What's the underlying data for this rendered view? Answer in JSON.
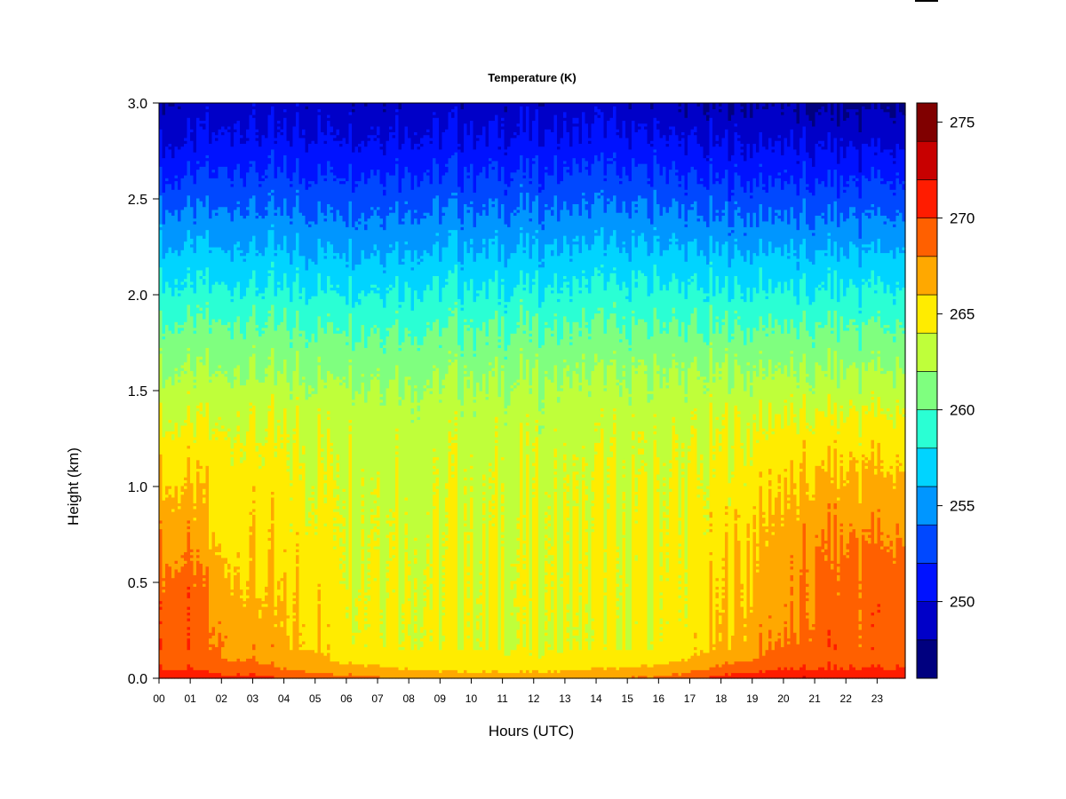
{
  "chart_data": {
    "type": "heatmap",
    "title": "Temperature (K)",
    "xlabel": "Hours (UTC)",
    "ylabel": "Height (km)",
    "x_ticks": [
      "00",
      "01",
      "02",
      "03",
      "04",
      "05",
      "06",
      "07",
      "08",
      "09",
      "10",
      "11",
      "12",
      "13",
      "14",
      "15",
      "16",
      "17",
      "18",
      "19",
      "20",
      "21",
      "22",
      "23"
    ],
    "x_range": [
      0,
      23.9
    ],
    "y_ticks": [
      "0.0",
      "0.5",
      "1.0",
      "1.5",
      "2.0",
      "2.5",
      "3.0"
    ],
    "y_range": [
      0,
      3.0
    ],
    "colorbar": {
      "range": [
        246,
        276
      ],
      "ticks": [
        "250",
        "255",
        "260",
        "265",
        "270",
        "275"
      ],
      "levels": [
        246,
        248,
        250,
        252,
        254,
        256,
        258,
        260,
        262,
        264,
        266,
        268,
        270,
        272,
        274,
        276
      ],
      "colors": [
        "#00007f",
        "#0000c8",
        "#0012ff",
        "#0048ff",
        "#0096ff",
        "#00d4ff",
        "#2affd4",
        "#7fff7f",
        "#bfff3a",
        "#ffec00",
        "#ffa800",
        "#ff6000",
        "#ff1c00",
        "#c80000",
        "#800000"
      ]
    },
    "grid": false,
    "profile_heights_km": [
      0.0,
      0.02,
      0.05,
      0.1,
      0.2,
      0.3,
      0.4,
      0.5,
      0.6,
      0.8,
      1.0,
      1.2,
      1.4,
      1.6,
      1.8,
      2.0,
      2.2,
      2.4,
      2.6,
      2.8,
      3.0
    ],
    "profiles": [
      {
        "hour": 0,
        "temps_K": [
          272,
          271,
          270,
          269.5,
          269,
          269,
          269,
          268.5,
          268,
          267,
          266,
          265,
          263.5,
          262,
          260.5,
          258.5,
          256.5,
          254.5,
          252,
          249.5,
          248
        ]
      },
      {
        "hour": 1,
        "temps_K": [
          272,
          271,
          270,
          269.5,
          269,
          269,
          269,
          269,
          268,
          267,
          266,
          265,
          263.5,
          262,
          260.5,
          258.5,
          256.5,
          254.5,
          252,
          250,
          248.5
        ]
      },
      {
        "hour": 2,
        "temps_K": [
          271,
          270,
          269,
          268,
          268,
          267.5,
          267,
          266.5,
          266,
          265.5,
          265,
          264.5,
          263.5,
          262,
          260.5,
          258.5,
          256.5,
          254.5,
          252.5,
          250.5,
          249
        ]
      },
      {
        "hour": 3,
        "temps_K": [
          271,
          270,
          269,
          268,
          267,
          267,
          266.5,
          266,
          265.8,
          265.5,
          265,
          264.5,
          263.5,
          262,
          260.5,
          258.5,
          256.5,
          254.5,
          252.5,
          250.5,
          249
        ]
      },
      {
        "hour": 4,
        "temps_K": [
          270,
          269,
          268,
          267,
          266.5,
          266.2,
          266,
          266,
          265.5,
          265,
          264.8,
          264.3,
          263.5,
          262,
          260.5,
          258.5,
          256.5,
          254.5,
          252.5,
          250.5,
          249
        ]
      },
      {
        "hour": 5,
        "temps_K": [
          270,
          268.5,
          267.5,
          266.5,
          266,
          266,
          265.8,
          265.5,
          265.2,
          264.8,
          264.5,
          264.2,
          263.5,
          262,
          260.5,
          258.5,
          256.5,
          254.5,
          252.5,
          250.5,
          249
        ]
      },
      {
        "hour": 6,
        "temps_K": [
          269,
          268,
          267,
          265.5,
          265,
          264.8,
          264.8,
          264.6,
          264.5,
          264.3,
          264.2,
          264,
          263.5,
          262,
          260.5,
          258.5,
          256.5,
          254.5,
          252.5,
          250.5,
          249
        ]
      },
      {
        "hour": 8,
        "temps_K": [
          268,
          267,
          266,
          265,
          264.5,
          264.5,
          264.4,
          264.3,
          264.2,
          264,
          263.8,
          263.5,
          263,
          261.8,
          260.3,
          258.5,
          256.5,
          254.5,
          252.5,
          250.5,
          249
        ]
      },
      {
        "hour": 10,
        "temps_K": [
          267.5,
          266.5,
          265.5,
          264.5,
          264.2,
          264.3,
          264.3,
          264.2,
          264.1,
          263.9,
          263.7,
          263.4,
          263,
          261.8,
          260.3,
          258.5,
          256.5,
          254.5,
          252.5,
          250.5,
          249
        ]
      },
      {
        "hour": 12,
        "temps_K": [
          267.5,
          266.5,
          265.5,
          264.3,
          263.8,
          264,
          264.2,
          264.2,
          264.1,
          263.9,
          263.7,
          263.4,
          263,
          261.8,
          260.3,
          258.5,
          256.5,
          254.5,
          252.5,
          250.5,
          249
        ]
      },
      {
        "hour": 14,
        "temps_K": [
          268,
          267,
          266,
          264.5,
          263.8,
          263.8,
          264,
          264.1,
          264,
          263.9,
          263.7,
          263.4,
          263,
          261.8,
          260.3,
          258.5,
          256.5,
          254.5,
          252.5,
          250.5,
          249
        ]
      },
      {
        "hour": 16,
        "temps_K": [
          268.5,
          267.5,
          266.5,
          265,
          264.3,
          264.2,
          264.3,
          264.3,
          264.2,
          264,
          263.8,
          263.5,
          263,
          261.8,
          260.3,
          258.5,
          256.5,
          254.5,
          252.5,
          250.3,
          248.5
        ]
      },
      {
        "hour": 17,
        "temps_K": [
          270,
          268.5,
          267.5,
          266,
          265,
          264.8,
          264.7,
          264.6,
          264.5,
          264.3,
          264.1,
          263.8,
          263.2,
          262,
          260.3,
          258.5,
          256.5,
          254.3,
          252,
          250,
          248
        ]
      },
      {
        "hour": 18,
        "temps_K": [
          271,
          270,
          268.5,
          267,
          266.2,
          266,
          265.8,
          265.6,
          265.4,
          265,
          264.6,
          264.2,
          263.5,
          262,
          260.3,
          258.3,
          256.3,
          254,
          251.8,
          249.8,
          248
        ]
      },
      {
        "hour": 19,
        "temps_K": [
          271.5,
          270.5,
          269.5,
          268,
          267,
          266.8,
          266.6,
          266.5,
          266.3,
          266,
          265.2,
          264.5,
          263.5,
          262,
          260.3,
          258.3,
          256.3,
          254,
          251.8,
          249.8,
          248
        ]
      },
      {
        "hour": 20,
        "temps_K": [
          272,
          271,
          270,
          269,
          268,
          267.5,
          267.2,
          267,
          266.8,
          266.5,
          265.8,
          265,
          263.8,
          262,
          260.3,
          258.3,
          256.3,
          254,
          251.8,
          249.8,
          248
        ]
      },
      {
        "hour": 21,
        "temps_K": [
          272,
          271,
          270,
          269.5,
          269,
          268.6,
          268.5,
          268.4,
          268.2,
          267.5,
          266.5,
          265.3,
          263.8,
          262,
          260.3,
          258.3,
          256.3,
          254,
          251.8,
          249.6,
          247.5
        ]
      },
      {
        "hour": 22,
        "temps_K": [
          272,
          271,
          270,
          269.5,
          269,
          269,
          269,
          268.8,
          268.5,
          267.5,
          266.5,
          265.3,
          263.8,
          262,
          260.3,
          258.3,
          256.3,
          254,
          251.8,
          249.5,
          247.5
        ]
      },
      {
        "hour": 23.9,
        "temps_K": [
          272,
          271,
          270,
          269.5,
          269,
          269,
          269,
          268.8,
          268.5,
          267.5,
          266.5,
          265.3,
          263.8,
          262,
          260.3,
          258.3,
          256.3,
          254,
          251.8,
          249.5,
          247.5
        ]
      }
    ]
  }
}
